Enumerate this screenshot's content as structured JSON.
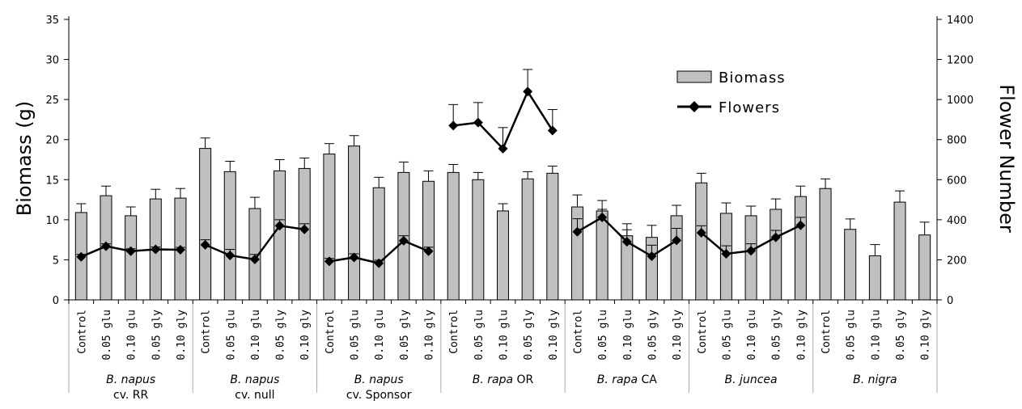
{
  "chart_data": {
    "type": "bar",
    "title": "",
    "ylabel_left": "Biomass (g)",
    "ylabel_right": "Flower Number",
    "ylim_left": [
      0,
      35
    ],
    "yticks_left": [
      "0",
      "5",
      "10",
      "15",
      "20",
      "25",
      "30",
      "35"
    ],
    "ylim_right": [
      0,
      1400
    ],
    "yticks_right": [
      "0",
      "200",
      "400",
      "600",
      "800",
      "1000",
      "1200",
      "1400"
    ],
    "grid": false,
    "legend_position": "top-right",
    "legend": [
      {
        "name": "Biomass",
        "kind": "bar"
      },
      {
        "name": "Flowers",
        "kind": "line"
      }
    ],
    "treatments": [
      "Control",
      "0.05 glu",
      "0.10 glu",
      "0.05 gly",
      "0.10 gly"
    ],
    "groups": [
      {
        "label_html": [
          "B. napus",
          "cv. RR"
        ],
        "label_parts": [
          {
            "t": "B. napus",
            "i": true
          }
        ],
        "label_line2": "cv. RR",
        "biomass": [
          10.9,
          13.0,
          10.5,
          12.6,
          12.7
        ],
        "biomass_err": [
          1.1,
          1.2,
          1.1,
          1.2,
          1.2
        ],
        "flowers": [
          215,
          268,
          243,
          252,
          250
        ],
        "flowers_err": [
          12,
          12,
          12,
          12,
          12
        ]
      },
      {
        "label_parts": [
          {
            "t": "B. napus",
            "i": true
          }
        ],
        "label_line2": "cv. null",
        "biomass": [
          18.9,
          16.0,
          11.4,
          16.1,
          16.4
        ],
        "biomass_err": [
          1.3,
          1.3,
          1.4,
          1.4,
          1.3
        ],
        "flowers": [
          275,
          222,
          202,
          370,
          352
        ],
        "flowers_err": [
          25,
          30,
          25,
          30,
          28
        ]
      },
      {
        "label_parts": [
          {
            "t": "B. napus",
            "i": true
          }
        ],
        "label_line2": "cv. Sponsor",
        "biomass": [
          18.2,
          19.2,
          14.0,
          15.9,
          14.8
        ],
        "biomass_err": [
          1.3,
          1.3,
          1.3,
          1.3,
          1.3
        ],
        "flowers": [
          192,
          212,
          183,
          295,
          243
        ],
        "flowers_err": [
          15,
          18,
          15,
          25,
          20
        ]
      },
      {
        "label_parts": [
          {
            "t": "B. rapa",
            "i": true
          },
          {
            "t": " OR",
            "i": false
          }
        ],
        "label_line2": "",
        "biomass": [
          15.9,
          15.0,
          11.1,
          15.1,
          15.8
        ],
        "biomass_err": [
          1.0,
          0.9,
          0.9,
          0.9,
          0.9
        ],
        "flowers": [
          870,
          885,
          755,
          1040,
          845
        ],
        "flowers_err": [
          105,
          100,
          105,
          110,
          105
        ]
      },
      {
        "label_parts": [
          {
            "t": "B. rapa",
            "i": true
          },
          {
            "t": " CA",
            "i": false
          }
        ],
        "label_line2": "",
        "biomass": [
          11.6,
          11.1,
          8.0,
          7.8,
          10.5
        ],
        "biomass_err": [
          1.5,
          1.3,
          1.5,
          1.5,
          1.3
        ],
        "flowers": [
          340,
          412,
          290,
          218,
          297
        ],
        "flowers_err": [
          65,
          40,
          60,
          55,
          60
        ]
      },
      {
        "label_parts": [
          {
            "t": "B. juncea",
            "i": true
          }
        ],
        "label_line2": "",
        "biomass": [
          14.6,
          10.8,
          10.5,
          11.3,
          12.9
        ],
        "biomass_err": [
          1.2,
          1.3,
          1.2,
          1.3,
          1.3
        ],
        "flowers": [
          335,
          230,
          245,
          312,
          372
        ],
        "flowers_err": [
          35,
          40,
          35,
          35,
          40
        ]
      },
      {
        "label_parts": [
          {
            "t": "B. nigra",
            "i": true
          }
        ],
        "label_line2": "",
        "biomass": [
          13.9,
          8.8,
          5.5,
          12.2,
          8.1
        ],
        "biomass_err": [
          1.2,
          1.3,
          1.4,
          1.4,
          1.6
        ],
        "flowers": null,
        "flowers_err": null
      }
    ]
  },
  "colors": {
    "bar_fill": "#c0c0c0",
    "bar_stroke": "#000000",
    "line": "#000000",
    "marker": "#000000",
    "axis": "#000000",
    "separator": "#aaaaaa"
  }
}
